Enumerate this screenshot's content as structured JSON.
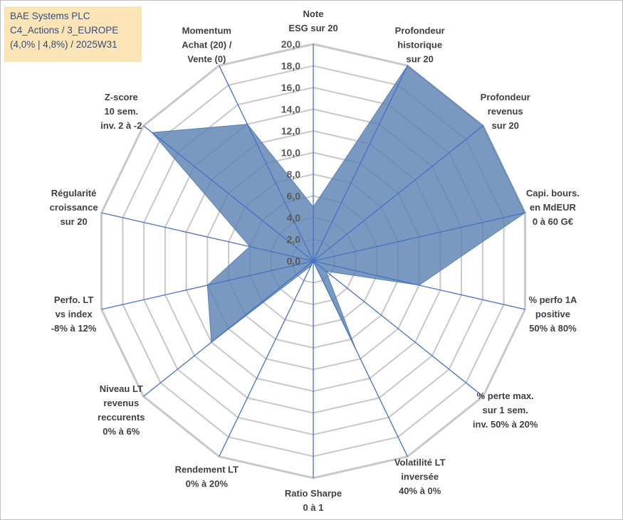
{
  "title_box": {
    "line1": "BAE Systems PLC",
    "line2": "C4_Actions / 3_EUROPE",
    "line3": "(4,0% | 4,8%) / 2025W31"
  },
  "chart_data": {
    "type": "radar",
    "rmin": 0,
    "rmax": 20,
    "tick_step": 2,
    "tick_labels": [
      "0,0",
      "2,0",
      "4,0",
      "6,0",
      "8,0",
      "10,0",
      "12,0",
      "14,0",
      "16,0",
      "18,0",
      "20,0"
    ],
    "fill_color": "#5b82b3",
    "line_color": "#4472c4",
    "grid_color": "#c8c8c8",
    "axes": [
      {
        "label": [
          "Note",
          "ESG sur 20"
        ],
        "value": 5.0
      },
      {
        "label": [
          "Profondeur",
          "historique",
          "sur 20"
        ],
        "value": 20.0
      },
      {
        "label": [
          "Profondeur",
          "revenus",
          "sur 20"
        ],
        "value": 20.0
      },
      {
        "label": [
          "Capi. bours.",
          "en MdEUR",
          "0 à 60 G€"
        ],
        "value": 20.0
      },
      {
        "label": [
          "% perfo 1A",
          "positive",
          "50% à 80%"
        ],
        "value": 10.0
      },
      {
        "label": [
          "% perte max.",
          "sur 1 sem.",
          "inv. 50% à 20%"
        ],
        "value": 1.5
      },
      {
        "label": [
          "Volatilité LT",
          "inversée",
          "40% à 0%"
        ],
        "value": 9.0
      },
      {
        "label": [
          "Ratio Sharpe",
          "0 à 1"
        ],
        "value": 0.0
      },
      {
        "label": [
          "Rendement LT",
          "0% à 20%"
        ],
        "value": 0.5
      },
      {
        "label": [
          "Niveau LT",
          "revenus",
          "reccurents",
          "0% à 6%"
        ],
        "value": 12.0
      },
      {
        "label": [
          "Perfo. LT",
          "vs index",
          "-8% à 12%"
        ],
        "value": 10.0
      },
      {
        "label": [
          "Régularité",
          "croissance",
          "sur 20"
        ],
        "value": 6.0
      },
      {
        "label": [
          "Z-score",
          "10 sem.",
          "inv. 2 à -2"
        ],
        "value": 19.0
      },
      {
        "label": [
          "Momentum",
          "Achat (20) /",
          "Vente (0)"
        ],
        "value": 14.0
      }
    ]
  }
}
